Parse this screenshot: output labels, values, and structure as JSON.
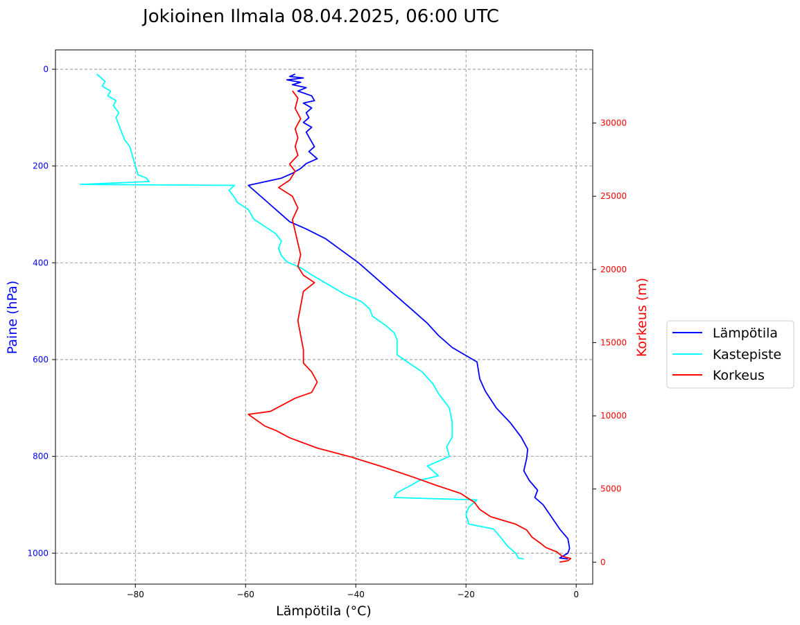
{
  "chart_data": {
    "type": "line",
    "title": "Jokioinen Ilmala 08.04.2025, 06:00 UTC",
    "xlabel": "Lämpötila (°C)",
    "ylabel_left": "Paine (hPa)",
    "ylabel_right": "Korkeus (m)",
    "xlim": [
      -94.5,
      3
    ],
    "ylim_left": [
      1064,
      -40
    ],
    "ylim_right": [
      -1500,
      35000
    ],
    "y_left_inverted": true,
    "x_ticks": [
      -80,
      -60,
      -40,
      -20,
      0
    ],
    "x_tick_labels": [
      "−80",
      "−60",
      "−40",
      "−20",
      "0"
    ],
    "y_left_ticks": [
      0,
      200,
      400,
      600,
      800,
      1000
    ],
    "y_left_tick_labels": [
      "0",
      "200",
      "400",
      "600",
      "800",
      "1000"
    ],
    "y_right_ticks": [
      0,
      5000,
      10000,
      15000,
      20000,
      25000,
      30000
    ],
    "y_right_tick_labels": [
      "0",
      "5000",
      "10000",
      "15000",
      "20000",
      "25000",
      "30000"
    ],
    "grid": true,
    "legend_position": "right",
    "colors": {
      "temperature": "#0000ff",
      "dewpoint": "#00ffff",
      "height": "#ff0000",
      "grid": "#808080"
    },
    "series": [
      {
        "name": "Lämpötila",
        "color": "#0000ff",
        "x_label": "temperature_C",
        "y_label": "pressure_hPa",
        "points": [
          [
            -51.0,
            10
          ],
          [
            -52.0,
            15
          ],
          [
            -49.5,
            18
          ],
          [
            -52.5,
            22
          ],
          [
            -50.0,
            27
          ],
          [
            -51.5,
            32
          ],
          [
            -49.0,
            38
          ],
          [
            -50.5,
            45
          ],
          [
            -48.0,
            55
          ],
          [
            -47.5,
            65
          ],
          [
            -49.5,
            70
          ],
          [
            -48.0,
            80
          ],
          [
            -49.0,
            90
          ],
          [
            -48.5,
            100
          ],
          [
            -49.5,
            110
          ],
          [
            -48.0,
            120
          ],
          [
            -49.0,
            130
          ],
          [
            -48.5,
            140
          ],
          [
            -48.0,
            150
          ],
          [
            -47.5,
            160
          ],
          [
            -48.5,
            170
          ],
          [
            -47.0,
            185
          ],
          [
            -49.0,
            195
          ],
          [
            -50.0,
            205
          ],
          [
            -51.5,
            215
          ],
          [
            -53.5,
            225
          ],
          [
            -59.5,
            240
          ],
          [
            -59.0,
            245
          ],
          [
            -58.0,
            255
          ],
          [
            -56.5,
            270
          ],
          [
            -55.0,
            285
          ],
          [
            -53.5,
            300
          ],
          [
            -52.0,
            315
          ],
          [
            -49.0,
            330
          ],
          [
            -45.5,
            350
          ],
          [
            -42.5,
            375
          ],
          [
            -39.5,
            400
          ],
          [
            -37.0,
            425
          ],
          [
            -34.5,
            450
          ],
          [
            -32.0,
            475
          ],
          [
            -29.5,
            500
          ],
          [
            -27.0,
            525
          ],
          [
            -25.0,
            550
          ],
          [
            -22.5,
            575
          ],
          [
            -18.0,
            605
          ],
          [
            -17.5,
            640
          ],
          [
            -16.5,
            665
          ],
          [
            -14.5,
            700
          ],
          [
            -12.0,
            730
          ],
          [
            -10.0,
            760
          ],
          [
            -8.8,
            785
          ],
          [
            -9.0,
            805
          ],
          [
            -9.5,
            830
          ],
          [
            -8.5,
            850
          ],
          [
            -7.0,
            870
          ],
          [
            -7.5,
            885
          ],
          [
            -6.0,
            900
          ],
          [
            -4.5,
            925
          ],
          [
            -3.0,
            950
          ],
          [
            -1.5,
            970
          ],
          [
            -1.2,
            990
          ],
          [
            -1.5,
            1000
          ],
          [
            -3.0,
            1010
          ],
          [
            -1.5,
            1012
          ]
        ]
      },
      {
        "name": "Kastepiste",
        "color": "#00ffff",
        "x_label": "dewpoint_C",
        "y_label": "pressure_hPa",
        "points": [
          [
            -87.0,
            10
          ],
          [
            -86.5,
            15
          ],
          [
            -85.5,
            25
          ],
          [
            -86.0,
            35
          ],
          [
            -84.5,
            45
          ],
          [
            -85.0,
            55
          ],
          [
            -83.5,
            65
          ],
          [
            -84.0,
            75
          ],
          [
            -83.0,
            90
          ],
          [
            -83.5,
            100
          ],
          [
            -83.0,
            115
          ],
          [
            -82.5,
            130
          ],
          [
            -82.0,
            145
          ],
          [
            -81.0,
            160
          ],
          [
            -80.5,
            180
          ],
          [
            -80.0,
            200
          ],
          [
            -79.5,
            218
          ],
          [
            -78.0,
            225
          ],
          [
            -77.5,
            232
          ],
          [
            -90.0,
            238
          ],
          [
            -62.0,
            240
          ],
          [
            -63.0,
            250
          ],
          [
            -62.0,
            265
          ],
          [
            -61.5,
            275
          ],
          [
            -59.5,
            290
          ],
          [
            -58.5,
            310
          ],
          [
            -56.5,
            325
          ],
          [
            -54.5,
            340
          ],
          [
            -53.5,
            355
          ],
          [
            -54.0,
            370
          ],
          [
            -53.5,
            385
          ],
          [
            -52.5,
            398
          ],
          [
            -50.0,
            410
          ],
          [
            -48.0,
            425
          ],
          [
            -45.0,
            445
          ],
          [
            -42.0,
            465
          ],
          [
            -39.0,
            480
          ],
          [
            -37.5,
            495
          ],
          [
            -37.0,
            510
          ],
          [
            -34.5,
            530
          ],
          [
            -33.0,
            545
          ],
          [
            -32.5,
            560
          ],
          [
            -32.5,
            590
          ],
          [
            -30.0,
            610
          ],
          [
            -28.0,
            625
          ],
          [
            -26.0,
            650
          ],
          [
            -25.0,
            670
          ],
          [
            -23.0,
            700
          ],
          [
            -22.5,
            730
          ],
          [
            -22.5,
            760
          ],
          [
            -23.5,
            780
          ],
          [
            -23.0,
            800
          ],
          [
            -27.0,
            820
          ],
          [
            -25.0,
            840
          ],
          [
            -28.5,
            850
          ],
          [
            -30.0,
            860
          ],
          [
            -32.5,
            875
          ],
          [
            -33.0,
            885
          ],
          [
            -18.0,
            890
          ],
          [
            -19.5,
            905
          ],
          [
            -20.0,
            920
          ],
          [
            -19.5,
            940
          ],
          [
            -15.0,
            950
          ],
          [
            -13.5,
            970
          ],
          [
            -12.5,
            985
          ],
          [
            -11.0,
            1000
          ],
          [
            -10.5,
            1010
          ],
          [
            -9.5,
            1012
          ]
        ]
      },
      {
        "name": "Korkeus",
        "color": "#ff0000",
        "x_label": "temperature_C",
        "y_label": "height_m",
        "points": [
          [
            -3.0,
            0
          ],
          [
            -1.5,
            100
          ],
          [
            -1.0,
            250
          ],
          [
            -2.5,
            400
          ],
          [
            -3.5,
            700
          ],
          [
            -5.5,
            1000
          ],
          [
            -6.5,
            1300
          ],
          [
            -8.0,
            1700
          ],
          [
            -9.0,
            2200
          ],
          [
            -11.0,
            2600
          ],
          [
            -15.5,
            3100
          ],
          [
            -17.5,
            3600
          ],
          [
            -18.5,
            4100
          ],
          [
            -21.0,
            4700
          ],
          [
            -25.0,
            5200
          ],
          [
            -29.5,
            5800
          ],
          [
            -35.0,
            6500
          ],
          [
            -41.0,
            7200
          ],
          [
            -47.0,
            7800
          ],
          [
            -52.0,
            8500
          ],
          [
            -54.5,
            9000
          ],
          [
            -56.5,
            9300
          ],
          [
            -59.5,
            10100
          ],
          [
            -55.5,
            10300
          ],
          [
            -53.0,
            10800
          ],
          [
            -51.0,
            11200
          ],
          [
            -48.0,
            11600
          ],
          [
            -47.0,
            12300
          ],
          [
            -48.0,
            13000
          ],
          [
            -49.5,
            13600
          ],
          [
            -49.5,
            14500
          ],
          [
            -50.0,
            15500
          ],
          [
            -50.5,
            16500
          ],
          [
            -50.0,
            17500
          ],
          [
            -49.5,
            18500
          ],
          [
            -47.5,
            19100
          ],
          [
            -49.5,
            19600
          ],
          [
            -50.5,
            20200
          ],
          [
            -50.0,
            21000
          ],
          [
            -50.5,
            21800
          ],
          [
            -51.0,
            22600
          ],
          [
            -51.5,
            23400
          ],
          [
            -50.5,
            24200
          ],
          [
            -51.5,
            25000
          ],
          [
            -54.0,
            25600
          ],
          [
            -52.0,
            26100
          ],
          [
            -51.0,
            26700
          ],
          [
            -52.0,
            27200
          ],
          [
            -50.5,
            27800
          ],
          [
            -51.0,
            28400
          ],
          [
            -50.5,
            29000
          ],
          [
            -51.0,
            29600
          ],
          [
            -50.0,
            30300
          ],
          [
            -51.0,
            31000
          ],
          [
            -50.5,
            31700
          ],
          [
            -51.5,
            32200
          ]
        ]
      }
    ],
    "legend": [
      "Lämpötila",
      "Kastepiste",
      "Korkeus"
    ]
  }
}
